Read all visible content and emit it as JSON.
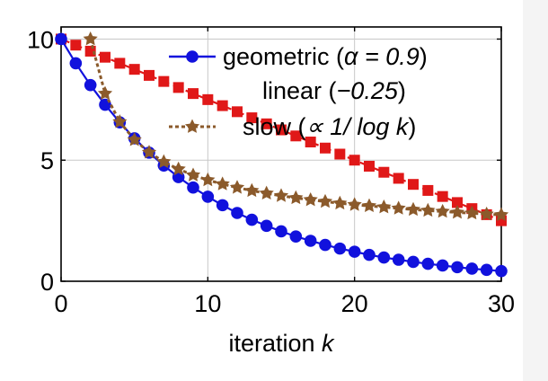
{
  "chart_data": {
    "type": "line",
    "title": "",
    "xlabel": "iteration",
    "xlabel_var": "k",
    "ylabel": "",
    "xlim": [
      0,
      30
    ],
    "ylim": [
      0,
      10.5
    ],
    "grid": true,
    "legend_position": "top-right",
    "x_ticks": [
      "0",
      "10",
      "20",
      "30"
    ],
    "y_ticks": [
      "0",
      "5",
      "10"
    ],
    "series": [
      {
        "name": "geometric",
        "label_text": "geometric (α = 0.9)",
        "label_prefix": "geometric (",
        "label_math": "α = 0.9",
        "label_suffix": ")",
        "color": "#1111dd",
        "marker": "circle",
        "x": [
          0,
          1,
          2,
          3,
          4,
          5,
          6,
          7,
          8,
          9,
          10,
          11,
          12,
          13,
          14,
          15,
          16,
          17,
          18,
          19,
          20,
          21,
          22,
          23,
          24,
          25,
          26,
          27,
          28,
          29,
          30
        ],
        "values": [
          10,
          9,
          8.1,
          7.29,
          6.56,
          5.9,
          5.31,
          4.78,
          4.3,
          3.87,
          3.49,
          3.14,
          2.82,
          2.54,
          2.29,
          2.06,
          1.85,
          1.67,
          1.5,
          1.35,
          1.22,
          1.09,
          0.98,
          0.89,
          0.8,
          0.72,
          0.65,
          0.58,
          0.52,
          0.47,
          0.42
        ]
      },
      {
        "name": "linear",
        "label_text": "linear (−0.25)",
        "label_prefix": "linear (",
        "label_math": "−0.25",
        "label_suffix": ")",
        "color": "#e01818",
        "marker": "square",
        "x": [
          0,
          1,
          2,
          3,
          4,
          5,
          6,
          7,
          8,
          9,
          10,
          11,
          12,
          13,
          14,
          15,
          16,
          17,
          18,
          19,
          20,
          21,
          22,
          23,
          24,
          25,
          26,
          27,
          28,
          29,
          30
        ],
        "values": [
          10,
          9.75,
          9.5,
          9.25,
          9,
          8.75,
          8.5,
          8.25,
          8,
          7.75,
          7.5,
          7.25,
          7,
          6.75,
          6.5,
          6.25,
          6,
          5.75,
          5.5,
          5.25,
          5,
          4.75,
          4.5,
          4.25,
          4,
          3.75,
          3.5,
          3.25,
          3,
          2.75,
          2.5
        ]
      },
      {
        "name": "slow",
        "label_text": "slow (∝ 1/ log k)",
        "label_prefix": "slow (",
        "label_math": "∝ 1/ log k",
        "label_suffix": ")",
        "color": "#8b5a2b",
        "marker": "star",
        "x": [
          2,
          3,
          4,
          5,
          6,
          7,
          8,
          9,
          10,
          11,
          12,
          13,
          14,
          15,
          16,
          17,
          18,
          19,
          20,
          21,
          22,
          23,
          24,
          25,
          26,
          27,
          28,
          29,
          30
        ],
        "values": [
          10,
          7.75,
          6.58,
          5.84,
          5.32,
          4.93,
          4.63,
          4.38,
          4.18,
          4.01,
          3.87,
          3.74,
          3.63,
          3.53,
          3.44,
          3.36,
          3.29,
          3.22,
          3.16,
          3.11,
          3.06,
          3.01,
          2.96,
          2.92,
          2.88,
          2.84,
          2.81,
          2.77,
          2.74
        ]
      }
    ]
  }
}
